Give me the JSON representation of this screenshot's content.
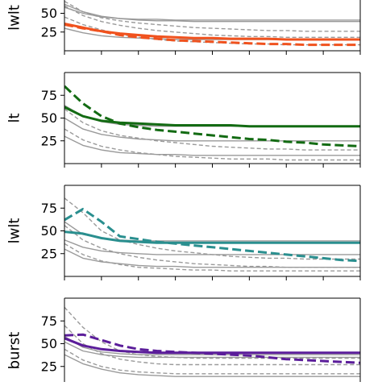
{
  "chart_data": [
    {
      "type": "line",
      "ylabel": "lwlt",
      "ylim": [
        0,
        100
      ],
      "yticks": [
        25,
        50
      ],
      "highlight_color": "#f0521e",
      "background_series_color": "#9a9a9a",
      "x": [
        0,
        1,
        2,
        3,
        4,
        5,
        6,
        7,
        8,
        9,
        10,
        11,
        12,
        13,
        14,
        15,
        16
      ],
      "series": [
        {
          "style": "solid",
          "role": "highlight",
          "values": [
            36,
            31,
            26,
            23,
            21,
            19,
            18,
            17,
            17,
            16,
            16,
            16,
            15,
            15,
            15,
            15,
            15
          ]
        },
        {
          "style": "dashed",
          "role": "highlight",
          "values": [
            35,
            30,
            26,
            21,
            18,
            16,
            14,
            13,
            12,
            11,
            10,
            9,
            9,
            8,
            8,
            8,
            8
          ]
        },
        {
          "style": "solid",
          "role": "background",
          "values": [
            58,
            50,
            45,
            43,
            42,
            42,
            41,
            41,
            41,
            41,
            41,
            41,
            41,
            41,
            41,
            41,
            41
          ]
        },
        {
          "style": "solid",
          "role": "background",
          "values": [
            62,
            52,
            46,
            43,
            41,
            40,
            40,
            39,
            39,
            39,
            39,
            39,
            39,
            39,
            39,
            39,
            39
          ]
        },
        {
          "style": "solid",
          "role": "background",
          "values": [
            30,
            24,
            20,
            18,
            17,
            16,
            15,
            15,
            15,
            15,
            15,
            15,
            15,
            15,
            15,
            15,
            15
          ]
        },
        {
          "style": "dashed",
          "role": "background",
          "values": [
            66,
            52,
            44,
            40,
            37,
            35,
            33,
            31,
            30,
            29,
            28,
            27,
            27,
            26,
            26,
            26,
            26
          ]
        },
        {
          "style": "dashed",
          "role": "background",
          "values": [
            60,
            47,
            39,
            34,
            30,
            27,
            25,
            23,
            21,
            20,
            19,
            19,
            18,
            18,
            18,
            18,
            18
          ]
        },
        {
          "style": "dashed",
          "role": "background",
          "values": [
            45,
            35,
            28,
            22,
            18,
            15,
            13,
            12,
            11,
            10,
            9,
            9,
            8,
            8,
            8,
            8,
            8
          ]
        }
      ]
    },
    {
      "type": "line",
      "ylabel": "lt",
      "ylim": [
        0,
        100
      ],
      "yticks": [
        25,
        50,
        75
      ],
      "highlight_color": "#136b13",
      "background_series_color": "#9a9a9a",
      "x": [
        0,
        1,
        2,
        3,
        4,
        5,
        6,
        7,
        8,
        9,
        10,
        11,
        12,
        13,
        14,
        15,
        16
      ],
      "series": [
        {
          "style": "solid",
          "role": "highlight",
          "values": [
            62,
            52,
            47,
            45,
            44,
            43,
            42,
            42,
            42,
            42,
            41,
            41,
            41,
            41,
            41,
            41,
            41
          ]
        },
        {
          "style": "dashed",
          "role": "highlight",
          "values": [
            85,
            66,
            52,
            44,
            40,
            37,
            35,
            33,
            31,
            29,
            27,
            26,
            24,
            23,
            21,
            20,
            19
          ]
        },
        {
          "style": "solid",
          "role": "background",
          "values": [
            64,
            52,
            46,
            43,
            42,
            41,
            41,
            41,
            41,
            41,
            41,
            41,
            41,
            41,
            41,
            41,
            41
          ]
        },
        {
          "style": "solid",
          "role": "background",
          "values": [
            50,
            38,
            32,
            29,
            27,
            26,
            25,
            25,
            25,
            25,
            25,
            25,
            25,
            25,
            25,
            25,
            25
          ]
        },
        {
          "style": "solid",
          "role": "background",
          "values": [
            30,
            20,
            15,
            12,
            11,
            10,
            10,
            9,
            9,
            9,
            9,
            9,
            9,
            9,
            9,
            9,
            9
          ]
        },
        {
          "style": "dashed",
          "role": "background",
          "values": [
            60,
            45,
            36,
            31,
            28,
            25,
            23,
            21,
            19,
            18,
            17,
            16,
            16,
            15,
            15,
            15,
            15
          ]
        },
        {
          "style": "dashed",
          "role": "background",
          "values": [
            38,
            26,
            19,
            15,
            12,
            10,
            8,
            7,
            6,
            5,
            5,
            5,
            4,
            4,
            4,
            4,
            4
          ]
        }
      ]
    },
    {
      "type": "line",
      "ylabel": "lwlt",
      "ylim": [
        0,
        100
      ],
      "yticks": [
        25,
        50,
        75
      ],
      "highlight_color": "#2a8f8f",
      "background_series_color": "#9a9a9a",
      "x": [
        0,
        1,
        2,
        3,
        4,
        5,
        6,
        7,
        8,
        9,
        10,
        11,
        12,
        13,
        14,
        15,
        16
      ],
      "series": [
        {
          "style": "solid",
          "role": "highlight",
          "values": [
            49,
            47,
            42,
            39,
            38,
            37,
            37,
            37,
            37,
            37,
            37,
            37,
            37,
            37,
            37,
            37,
            37
          ]
        },
        {
          "style": "dashed",
          "role": "highlight",
          "values": [
            62,
            74,
            60,
            44,
            41,
            38,
            36,
            34,
            32,
            30,
            28,
            26,
            24,
            22,
            20,
            18,
            17
          ]
        },
        {
          "style": "solid",
          "role": "background",
          "values": [
            60,
            46,
            42,
            40,
            39,
            39,
            39,
            39,
            39,
            39,
            39,
            39,
            39,
            39,
            39,
            39,
            39
          ]
        },
        {
          "style": "solid",
          "role": "background",
          "values": [
            40,
            32,
            28,
            26,
            25,
            24,
            24,
            24,
            24,
            24,
            24,
            24,
            24,
            24,
            24,
            24,
            24
          ]
        },
        {
          "style": "solid",
          "role": "background",
          "values": [
            30,
            20,
            16,
            14,
            12,
            11,
            11,
            10,
            10,
            10,
            10,
            10,
            10,
            10,
            10,
            10,
            10
          ]
        },
        {
          "style": "dashed",
          "role": "background",
          "values": [
            86,
            70,
            50,
            40,
            35,
            31,
            28,
            26,
            24,
            22,
            21,
            20,
            20,
            19,
            19,
            19,
            19
          ]
        },
        {
          "style": "dashed",
          "role": "background",
          "values": [
            56,
            40,
            31,
            25,
            21,
            18,
            16,
            14,
            13,
            12,
            11,
            11,
            10,
            10,
            10,
            10,
            10
          ]
        },
        {
          "style": "dashed",
          "role": "background",
          "values": [
            36,
            24,
            17,
            13,
            10,
            9,
            8,
            7,
            7,
            6,
            6,
            6,
            6,
            6,
            6,
            6,
            6
          ]
        }
      ]
    },
    {
      "type": "line",
      "ylabel": "burst",
      "ylim": [
        0,
        100
      ],
      "yticks": [
        25,
        50,
        75
      ],
      "highlight_color": "#5b1d9a",
      "background_series_color": "#9a9a9a",
      "x": [
        0,
        1,
        2,
        3,
        4,
        5,
        6,
        7,
        8,
        9,
        10,
        11,
        12,
        13,
        14,
        15,
        16
      ],
      "series": [
        {
          "style": "solid",
          "role": "highlight",
          "values": [
            56,
            48,
            44,
            42,
            41,
            40,
            40,
            40,
            40,
            40,
            40,
            40,
            40,
            40,
            40,
            40,
            40
          ]
        },
        {
          "style": "dashed",
          "role": "highlight",
          "values": [
            59,
            60,
            54,
            48,
            44,
            42,
            41,
            40,
            39,
            38,
            37,
            35,
            33,
            32,
            31,
            30,
            29
          ]
        },
        {
          "style": "solid",
          "role": "background",
          "values": [
            58,
            46,
            41,
            39,
            38,
            38,
            38,
            38,
            38,
            38,
            38,
            38,
            38,
            38,
            38,
            38,
            38
          ]
        },
        {
          "style": "solid",
          "role": "background",
          "values": [
            52,
            42,
            38,
            36,
            35,
            35,
            35,
            35,
            35,
            35,
            35,
            35,
            35,
            35,
            35,
            35,
            35
          ]
        },
        {
          "style": "solid",
          "role": "background",
          "values": [
            38,
            28,
            22,
            18,
            16,
            15,
            14,
            14,
            14,
            14,
            14,
            14,
            14,
            14,
            14,
            14,
            14
          ]
        },
        {
          "style": "dashed",
          "role": "background",
          "values": [
            90,
            68,
            52,
            42,
            38,
            36,
            35,
            34,
            34,
            34,
            34,
            34,
            34,
            34,
            34,
            34,
            34
          ]
        },
        {
          "style": "dashed",
          "role": "background",
          "values": [
            70,
            50,
            39,
            33,
            30,
            28,
            27,
            27,
            27,
            27,
            27,
            27,
            27,
            27,
            27,
            27,
            27
          ]
        },
        {
          "style": "dashed",
          "role": "background",
          "values": [
            44,
            32,
            25,
            21,
            19,
            18,
            17,
            17,
            17,
            17,
            17,
            17,
            17,
            17,
            17,
            17,
            17
          ]
        }
      ]
    }
  ]
}
